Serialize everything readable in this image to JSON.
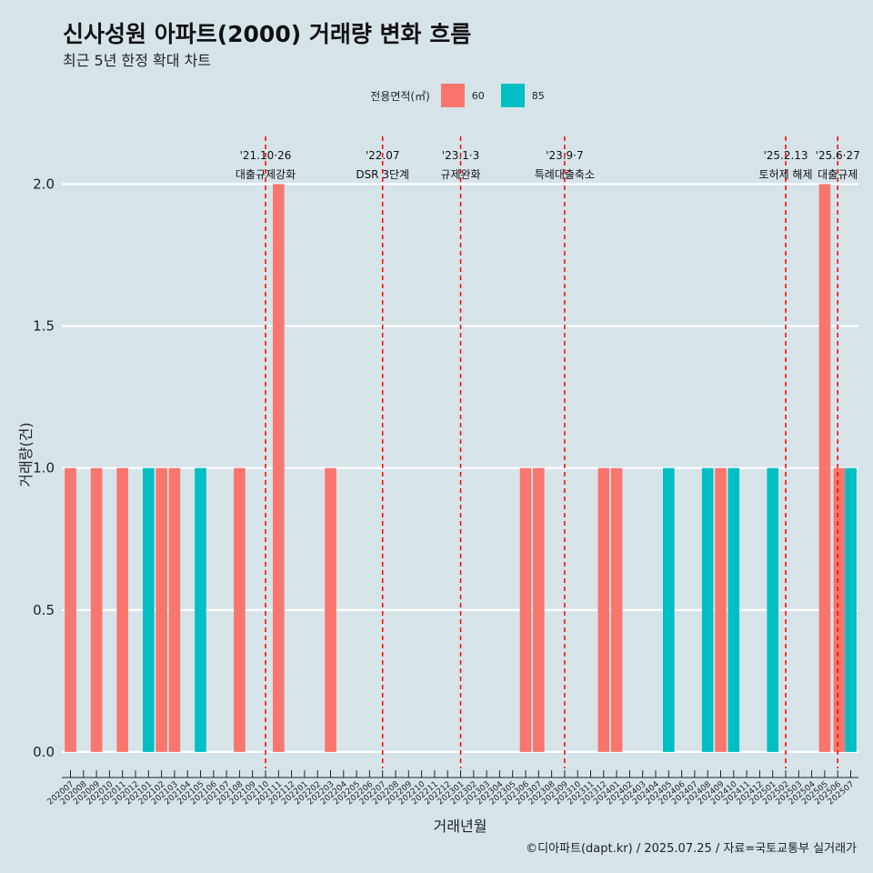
{
  "page": {
    "title": "신사성원 아파트(2000) 거래량 변화 흐름",
    "subtitle": "최근 5년 한정 확대 차트",
    "caption": "©디아파트(dapt.kr) / 2025.07.25 / 자료=국토교통부 실거래가"
  },
  "chart_data": {
    "type": "bar",
    "title": "신사성원 아파트(2000) 거래량 변화 흐름",
    "subtitle": "최근 5년 한정 확대 차트",
    "xlabel": "거래년월",
    "ylabel": "거래량(건)",
    "ylim": [
      -0.09,
      2.2
    ],
    "yticks": [
      "0.0",
      "0.5",
      "1.0",
      "1.5",
      "2.0"
    ],
    "legend_title": "전용면적(㎡)",
    "legend_position": "top",
    "series_colors": {
      "60": "#F8766D",
      "85": "#00BFC4"
    },
    "categories": [
      "202007",
      "202008",
      "202009",
      "202010",
      "202011",
      "202012",
      "202101",
      "202102",
      "202103",
      "202104",
      "202105",
      "202106",
      "202107",
      "202108",
      "202109",
      "202110",
      "202111",
      "202112",
      "202201",
      "202202",
      "202203",
      "202204",
      "202205",
      "202206",
      "202207",
      "202208",
      "202209",
      "202210",
      "202211",
      "202212",
      "202301",
      "202302",
      "202303",
      "202304",
      "202305",
      "202306",
      "202307",
      "202308",
      "202309",
      "202310",
      "202311",
      "202312",
      "202401",
      "202402",
      "202403",
      "202404",
      "202405",
      "202406",
      "202407",
      "202408",
      "202409",
      "202410",
      "202411",
      "202412",
      "202501",
      "202502",
      "202503",
      "202504",
      "202505",
      "202506",
      "202507"
    ],
    "bars": [
      {
        "x": "202007",
        "series": "60",
        "value": 1,
        "slot": 0
      },
      {
        "x": "202009",
        "series": "60",
        "value": 1,
        "slot": 0
      },
      {
        "x": "202011",
        "series": "60",
        "value": 1,
        "slot": 0
      },
      {
        "x": "202101",
        "series": "85",
        "value": 1,
        "slot": 0
      },
      {
        "x": "202102",
        "series": "60",
        "value": 1,
        "slot": 0
      },
      {
        "x": "202103",
        "series": "60",
        "value": 1,
        "slot": 0
      },
      {
        "x": "202105",
        "series": "85",
        "value": 1,
        "slot": 0
      },
      {
        "x": "202108",
        "series": "60",
        "value": 1,
        "slot": 0
      },
      {
        "x": "202111",
        "series": "60",
        "value": 2,
        "slot": 0
      },
      {
        "x": "202203",
        "series": "60",
        "value": 1,
        "slot": 0
      },
      {
        "x": "202306",
        "series": "60",
        "value": 1,
        "slot": 0
      },
      {
        "x": "202307",
        "series": "60",
        "value": 1,
        "slot": 0
      },
      {
        "x": "202312",
        "series": "60",
        "value": 1,
        "slot": 0
      },
      {
        "x": "202401",
        "series": "60",
        "value": 1,
        "slot": 0
      },
      {
        "x": "202405",
        "series": "85",
        "value": 1,
        "slot": 0
      },
      {
        "x": "202408",
        "series": "85",
        "value": 1,
        "slot": 0
      },
      {
        "x": "202409",
        "series": "60",
        "value": 1,
        "slot": 0
      },
      {
        "x": "202410",
        "series": "85",
        "value": 1,
        "slot": 0
      },
      {
        "x": "202501",
        "series": "85",
        "value": 1,
        "slot": 0
      },
      {
        "x": "202505",
        "series": "60",
        "value": 2,
        "slot": 0
      },
      {
        "x": "202507",
        "series": "60",
        "value": 1,
        "slot": -1
      },
      {
        "x": "202507",
        "series": "85",
        "value": 1,
        "slot": 0
      }
    ],
    "annotations": [
      {
        "x": "202110",
        "line1": "'21.10·26",
        "line2": "대출규제강화"
      },
      {
        "x": "202207",
        "line1": "'22.07",
        "line2": "DSR 3단계"
      },
      {
        "x": "202301",
        "line1": "'23.1·3",
        "line2": "규제완화"
      },
      {
        "x": "202309",
        "line1": "'23.9·7",
        "line2": "특례대출축소"
      },
      {
        "x": "202502",
        "line1": "'25.2.13",
        "line2": "토허제 해제"
      },
      {
        "x": "202506",
        "line1": "'25.6·27",
        "line2": "대출규제"
      }
    ]
  }
}
